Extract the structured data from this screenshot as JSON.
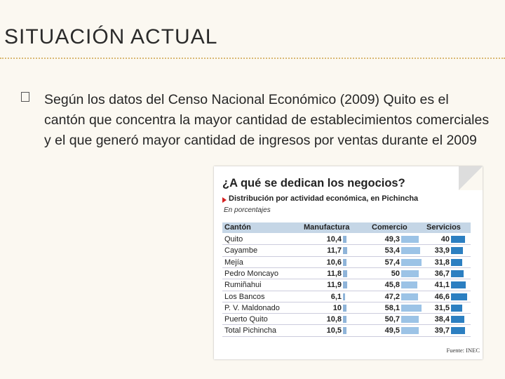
{
  "header": {
    "title": "SITUACIÓN ACTUAL"
  },
  "bullets": [
    "Según los datos del Censo Nacional Económico (2009) Quito es el cantón que concentra la mayor cantidad de establecimientos comerciales y el que generó mayor cantidad de ingresos por ventas durante el 2009"
  ],
  "figure": {
    "title": "¿A qué se dedican los negocios?",
    "subtitle": "Distribución por actividad económica, en Pichincha",
    "note": "En porcentajes",
    "table": {
      "columns": [
        "Cantón",
        "Manufactura",
        "Comercio",
        "Servicios"
      ],
      "rows": [
        [
          "Quito",
          "10,4",
          "49,3",
          "40"
        ],
        [
          "Cayambe",
          "11,7",
          "53,4",
          "33,9"
        ],
        [
          "Mejía",
          "10,6",
          "57,4",
          "31,8"
        ],
        [
          "Pedro Moncayo",
          "11,8",
          "50",
          "36,7"
        ],
        [
          "Rumiñahui",
          "11,9",
          "45,8",
          "41,1"
        ],
        [
          "Los Bancos",
          "6,1",
          "47,2",
          "46,6"
        ],
        [
          "P. V. Maldonado",
          "10",
          "58,1",
          "31,5"
        ],
        [
          "Puerto Quito",
          "10,8",
          "50,7",
          "38,4"
        ],
        [
          "Total Pichincha",
          "10,5",
          "49,5",
          "39,7"
        ]
      ]
    },
    "source": "Fuente: INEC"
  }
}
